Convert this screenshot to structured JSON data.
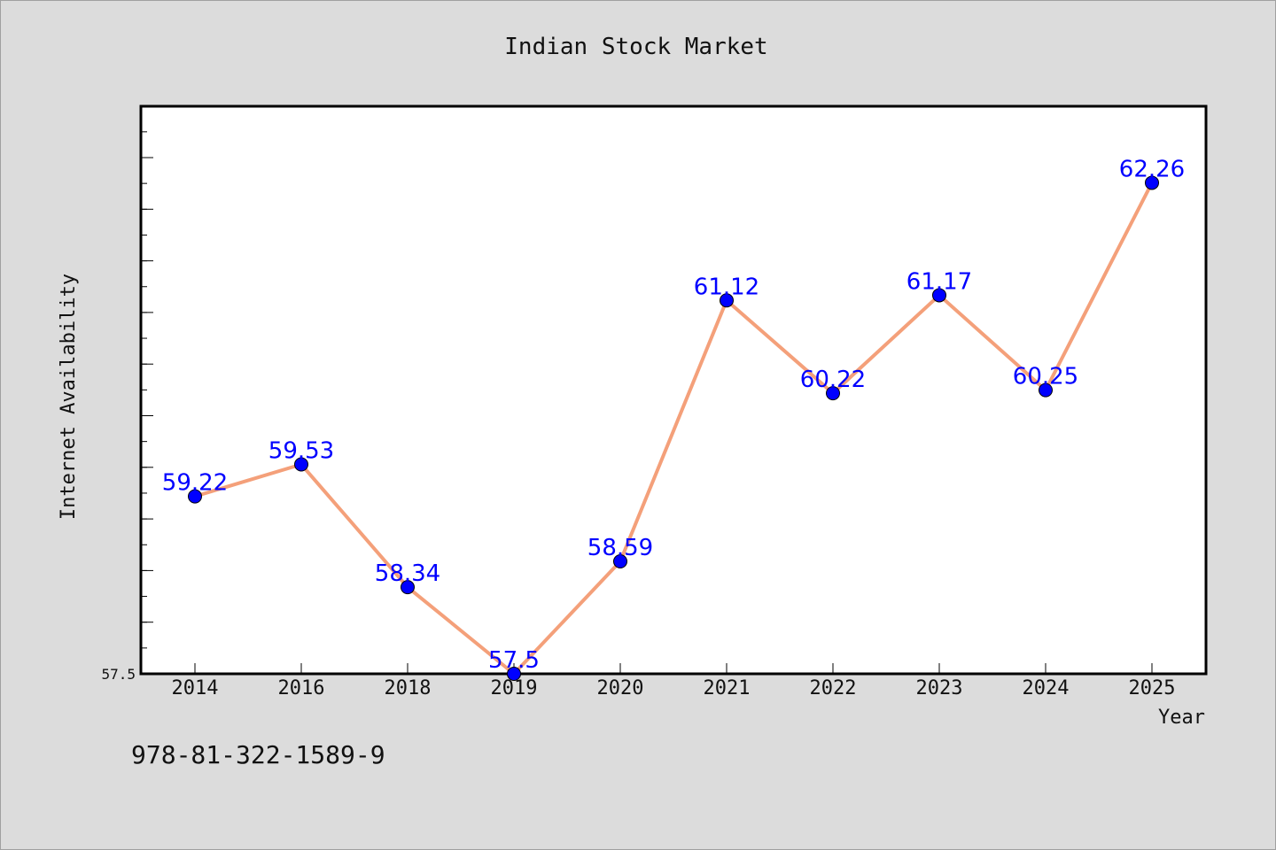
{
  "chart_data": {
    "type": "line",
    "title": "Indian Stock Market",
    "xlabel": "Year",
    "ylabel": "Internet Availability",
    "categories": [
      "2014",
      "2016",
      "2018",
      "2019",
      "2020",
      "2021",
      "2022",
      "2023",
      "2024",
      "2025"
    ],
    "series": [
      {
        "values": [
          59.22,
          59.53,
          58.34,
          57.5,
          58.59,
          61.12,
          60.22,
          61.17,
          60.25,
          62.26
        ],
        "labels": [
          "59.22",
          "59.53",
          "58.34",
          "57.5",
          "58.59",
          "61.12",
          "60.22",
          "61.17",
          "60.25",
          "62.26"
        ],
        "line_color": "#f4a07a",
        "marker_color": "#0000ff",
        "label_color": "#0000ff"
      }
    ],
    "ylim": [
      57.5,
      63.0
    ],
    "yticks_labeled": [
      "57.5"
    ],
    "grid": false,
    "legend": "none"
  },
  "footer": {
    "isbn": "978-81-322-1589-9"
  }
}
